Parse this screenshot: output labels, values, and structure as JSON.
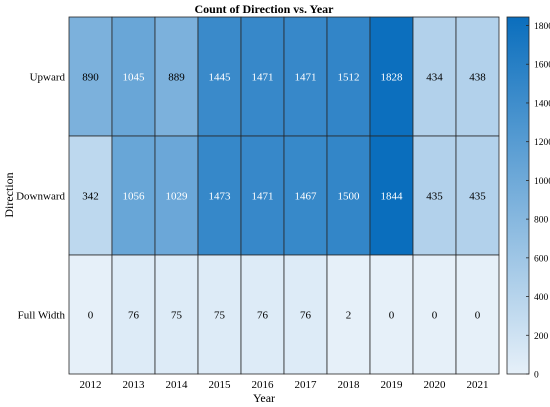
{
  "chart_data": {
    "type": "heatmap",
    "title": "Count of Direction vs. Year",
    "xlabel": "Year",
    "ylabel": "Direction",
    "x_categories": [
      "2012",
      "2013",
      "2014",
      "2015",
      "2016",
      "2017",
      "2018",
      "2019",
      "2020",
      "2021"
    ],
    "y_categories": [
      "Upward",
      "Downward",
      "Full Width"
    ],
    "values": [
      [
        890,
        1045,
        889,
        1445,
        1471,
        1471,
        1512,
        1828,
        434,
        438
      ],
      [
        342,
        1056,
        1029,
        1473,
        1471,
        1467,
        1500,
        1844,
        435,
        435
      ],
      [
        0,
        76,
        75,
        75,
        76,
        76,
        2,
        0,
        0,
        0
      ]
    ],
    "colorbar": {
      "min": 0,
      "max": 1844,
      "ticks": [
        0,
        200,
        400,
        600,
        800,
        1000,
        1200,
        1400,
        1600,
        1800
      ]
    },
    "colors": {
      "low": "#e6f0f9",
      "high": "#0a6ebd"
    },
    "label_dark_color": "#000000",
    "label_light_color": "#ffffff"
  }
}
